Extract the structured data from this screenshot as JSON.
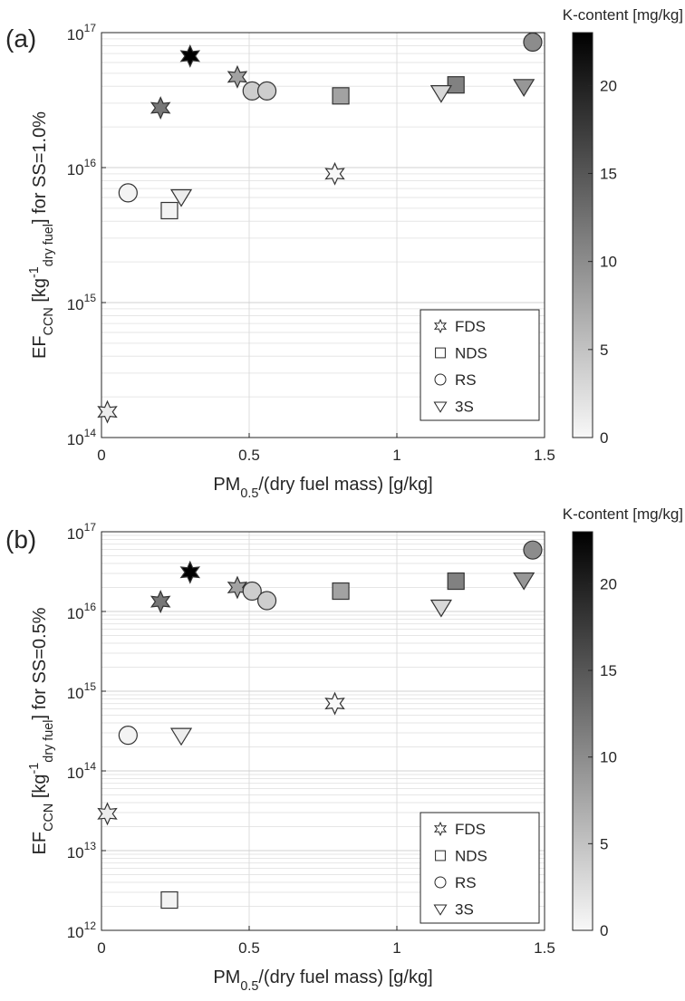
{
  "chart_data": [
    {
      "type": "scatter",
      "panel": "(a)",
      "xlabel": [
        {
          "text": "PM"
        },
        {
          "text": "0.5",
          "shift": "sub"
        },
        {
          "text": "/(dry fuel mass) [g/kg]"
        }
      ],
      "ylabel": [
        {
          "text": "EF"
        },
        {
          "text": "CCN",
          "shift": "sub"
        },
        {
          "text": " [kg"
        },
        {
          "text": "-1",
          "shift": "super"
        },
        {
          "text": "dry fuel",
          "shift": "sub"
        },
        {
          "text": "] for SS=1.0%"
        }
      ],
      "xlim": [
        0,
        1.5
      ],
      "xticks": [
        0,
        0.5,
        1,
        1.5
      ],
      "ylim": [
        100000000000000.0,
        1e+17
      ],
      "log_y": true,
      "grid": true,
      "minor_grid": true,
      "yticks": [
        {
          "value": 100000000000000.0,
          "label": "10",
          "exponent": "14"
        },
        {
          "value": 1000000000000000.0,
          "label": "10",
          "exponent": "15"
        },
        {
          "value": 1e+16,
          "label": "10",
          "exponent": "16"
        },
        {
          "value": 1e+17,
          "label": "10",
          "exponent": "17"
        }
      ],
      "colorbar": {
        "label": "K-content [mg/kg]",
        "clim": [
          0,
          23
        ],
        "ticks": [
          0,
          5,
          10,
          15,
          20
        ],
        "colormap": [
          "#f8f8f8",
          "#000000"
        ]
      },
      "legend": "lower right",
      "series": [
        {
          "name": "FDS",
          "marker": "hexagram",
          "x": [
            0.02,
            0.2,
            0.3,
            0.46,
            0.79
          ],
          "values": [
            155000000000000.0,
            2.77e+16,
            6.7e+16,
            4.7e+16,
            9000000000000000.0
          ],
          "k": [
            1,
            12,
            23,
            8,
            0
          ]
        },
        {
          "name": "NDS",
          "marker": "square",
          "x": [
            0.23,
            0.81,
            1.2
          ],
          "values": [
            4800000000000000.0,
            3.4e+16,
            4.1e+16
          ],
          "k": [
            0.5,
            8,
            11
          ]
        },
        {
          "name": "RS",
          "marker": "circle",
          "x": [
            0.09,
            0.51,
            0.56,
            1.46
          ],
          "values": [
            6500000000000000.0,
            3.7e+16,
            3.7e+16,
            8.5e+16
          ],
          "k": [
            0.5,
            4,
            4,
            10
          ]
        },
        {
          "name": "3S",
          "marker": "triangle-down",
          "x": [
            0.27,
            1.15,
            1.43
          ],
          "values": [
            6100000000000000.0,
            3.6e+16,
            4e+16
          ],
          "k": [
            1,
            3,
            9
          ]
        }
      ]
    },
    {
      "type": "scatter",
      "panel": "(b)",
      "xlabel": [
        {
          "text": "PM"
        },
        {
          "text": "0.5",
          "shift": "sub"
        },
        {
          "text": "/(dry fuel mass) [g/kg]"
        }
      ],
      "ylabel": [
        {
          "text": "EF"
        },
        {
          "text": "CCN",
          "shift": "sub"
        },
        {
          "text": " [kg"
        },
        {
          "text": "-1",
          "shift": "super"
        },
        {
          "text": "dry fuel",
          "shift": "sub"
        },
        {
          "text": "] for SS=0.5%"
        }
      ],
      "xlim": [
        0,
        1.5
      ],
      "xticks": [
        0,
        0.5,
        1,
        1.5
      ],
      "ylim": [
        1000000000000.0,
        1e+17
      ],
      "log_y": true,
      "grid": true,
      "minor_grid": true,
      "yticks": [
        {
          "value": 1000000000000.0,
          "label": "10",
          "exponent": "12"
        },
        {
          "value": 10000000000000.0,
          "label": "10",
          "exponent": "13"
        },
        {
          "value": 100000000000000.0,
          "label": "10",
          "exponent": "14"
        },
        {
          "value": 1000000000000000.0,
          "label": "10",
          "exponent": "15"
        },
        {
          "value": 1e+16,
          "label": "10",
          "exponent": "16"
        },
        {
          "value": 1e+17,
          "label": "10",
          "exponent": "17"
        }
      ],
      "colorbar": {
        "label": "K-content [mg/kg]",
        "clim": [
          0,
          23
        ],
        "ticks": [
          0,
          5,
          10,
          15,
          20
        ],
        "colormap": [
          "#f8f8f8",
          "#000000"
        ]
      },
      "legend": "lower right",
      "series": [
        {
          "name": "FDS",
          "marker": "hexagram",
          "x": [
            0.02,
            0.2,
            0.3,
            0.46,
            0.79
          ],
          "values": [
            29000000000000.0,
            1.33e+16,
            3.1e+16,
            2e+16,
            700000000000000.0
          ],
          "k": [
            1,
            12,
            23,
            8,
            0
          ]
        },
        {
          "name": "NDS",
          "marker": "square",
          "x": [
            0.23,
            0.81,
            1.2
          ],
          "values": [
            2400000000000.0,
            1.8e+16,
            2.4e+16
          ],
          "k": [
            0.5,
            8,
            11
          ]
        },
        {
          "name": "RS",
          "marker": "circle",
          "x": [
            0.09,
            0.51,
            0.56,
            1.46
          ],
          "values": [
            280000000000000.0,
            1.8e+16,
            1.37e+16,
            5.9e+16
          ],
          "k": [
            0.5,
            4,
            4,
            10
          ]
        },
        {
          "name": "3S",
          "marker": "triangle-down",
          "x": [
            0.27,
            1.15,
            1.43
          ],
          "values": [
            280000000000000.0,
            1.14e+16,
            2.5e+16
          ],
          "k": [
            1,
            3,
            9
          ]
        }
      ]
    }
  ]
}
